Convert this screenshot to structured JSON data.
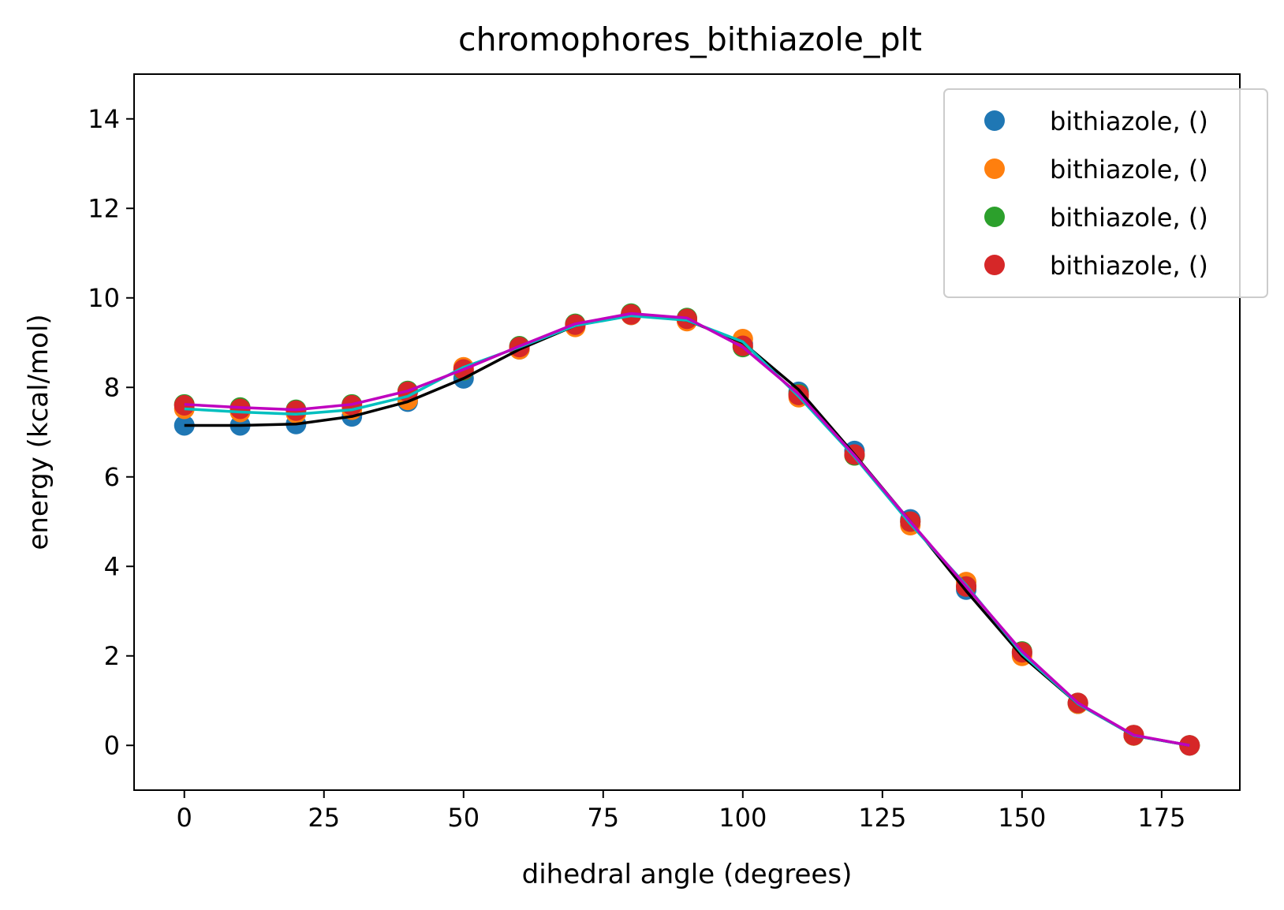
{
  "chart_data": {
    "type": "scatter",
    "title": "chromophores_bithiazole_plt",
    "xlabel": "dihedral angle (degrees)",
    "ylabel": "energy (kcal/mol)",
    "xlim": [
      -9,
      189
    ],
    "ylim": [
      -1,
      15
    ],
    "xticks": [
      0,
      25,
      50,
      75,
      100,
      125,
      150,
      175
    ],
    "yticks": [
      0,
      2,
      4,
      6,
      8,
      10,
      12,
      14
    ],
    "grid": false,
    "legend_position": "top-right",
    "x": [
      0,
      10,
      20,
      30,
      40,
      50,
      60,
      70,
      80,
      90,
      100,
      110,
      120,
      130,
      140,
      150,
      160,
      170,
      180
    ],
    "series": [
      {
        "name": "bithiazole, ()",
        "color": "#1f77b4",
        "mode": "markers",
        "values": [
          7.15,
          7.15,
          7.18,
          7.35,
          7.68,
          8.2,
          8.85,
          9.38,
          9.62,
          9.5,
          8.98,
          7.9,
          6.58,
          5.05,
          3.48,
          2.05,
          0.93,
          0.22,
          0.0
        ]
      },
      {
        "name": "bithiazole, ()",
        "color": "#ff7f0e",
        "mode": "markers",
        "values": [
          7.52,
          7.45,
          7.42,
          7.5,
          7.72,
          8.45,
          8.85,
          9.35,
          9.62,
          9.48,
          9.08,
          7.78,
          6.48,
          4.92,
          3.65,
          2.0,
          0.93,
          0.22,
          0.0
        ]
      },
      {
        "name": "bithiazole, ()",
        "color": "#2ca02c",
        "mode": "markers",
        "values": [
          7.62,
          7.55,
          7.5,
          7.62,
          7.92,
          8.38,
          8.92,
          9.42,
          9.65,
          9.55,
          8.9,
          7.85,
          6.48,
          5.0,
          3.55,
          2.1,
          0.95,
          0.23,
          0.0
        ]
      },
      {
        "name": "bithiazole, ()",
        "color": "#d62728",
        "mode": "markers",
        "values": [
          7.6,
          7.52,
          7.48,
          7.6,
          7.9,
          8.4,
          8.9,
          9.4,
          9.63,
          9.53,
          8.93,
          7.83,
          6.5,
          5.0,
          3.55,
          2.08,
          0.95,
          0.23,
          0.0
        ]
      },
      {
        "color": "#000000",
        "mode": "line",
        "values": [
          7.15,
          7.15,
          7.18,
          7.35,
          7.68,
          8.2,
          8.85,
          9.38,
          9.62,
          9.5,
          9.0,
          7.95,
          6.5,
          5.0,
          3.45,
          2.0,
          0.93,
          0.22,
          0.0
        ]
      },
      {
        "color": "#00bfbf",
        "mode": "line",
        "values": [
          7.52,
          7.45,
          7.4,
          7.5,
          7.8,
          8.45,
          8.9,
          9.38,
          9.6,
          9.5,
          9.02,
          7.8,
          6.45,
          4.95,
          3.58,
          2.05,
          0.93,
          0.22,
          0.0
        ]
      },
      {
        "color": "#bf00bf",
        "mode": "line",
        "values": [
          7.62,
          7.55,
          7.5,
          7.62,
          7.92,
          8.4,
          8.92,
          9.42,
          9.65,
          9.55,
          8.9,
          7.85,
          6.48,
          5.0,
          3.55,
          2.1,
          0.95,
          0.23,
          0.0
        ]
      }
    ]
  }
}
